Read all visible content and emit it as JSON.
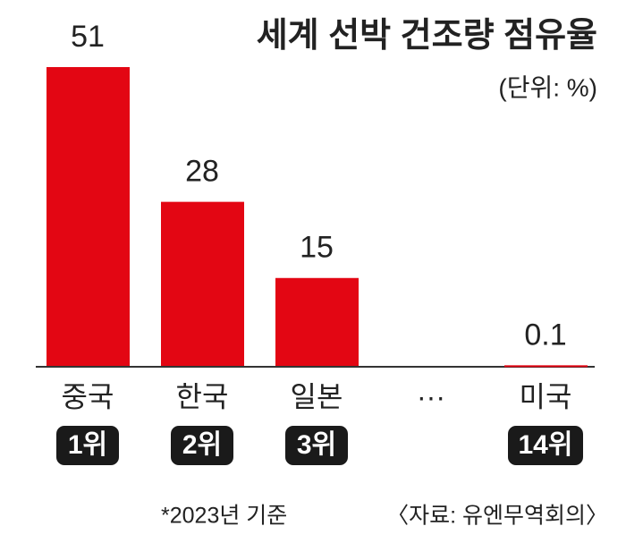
{
  "chart_data": {
    "type": "bar",
    "title": "세계 선박 건조량 점유율",
    "subtitle": "(단위: %)",
    "categories": [
      "중국",
      "한국",
      "일본",
      "···",
      "미국"
    ],
    "ranks": [
      "1위",
      "2위",
      "3위",
      null,
      "14위"
    ],
    "values": [
      51,
      28,
      15,
      null,
      0.1
    ],
    "color": "#e30613",
    "ylim": [
      0,
      51
    ],
    "note": "*2023년 기준",
    "source": "〈자료: 유엔무역회의〉"
  }
}
